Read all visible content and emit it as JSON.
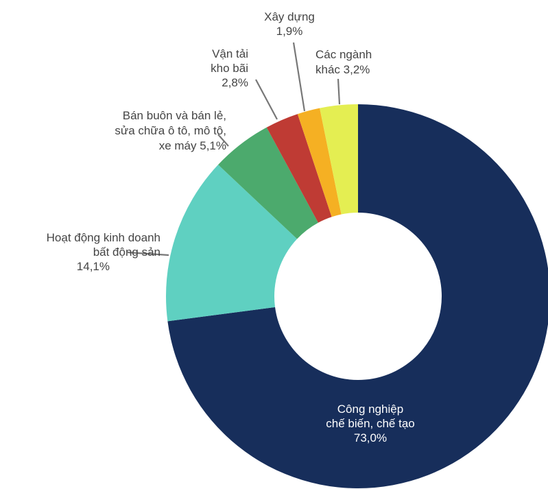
{
  "chart_data": {
    "type": "pie",
    "variant": "donut",
    "title": "",
    "unit": "%",
    "slices": [
      {
        "label_lines": [
          "Công nghiệp",
          "chế biến, chế tạo"
        ],
        "display_value": "73,0%",
        "value": 73.0,
        "color": "#172e5b"
      },
      {
        "label_lines": [
          "Hoạt động kinh doanh",
          "bất động sản"
        ],
        "display_value": "14,1%",
        "value": 14.1,
        "color": "#5fd0c1"
      },
      {
        "label_lines": [
          "Bán buôn và bán lẻ,",
          "sửa chữa ô tô, mô tô,",
          "xe máy"
        ],
        "display_value": "5,1%",
        "value": 5.1,
        "color": "#4caa6d"
      },
      {
        "label_lines": [
          "Vận tải",
          "kho bãi"
        ],
        "display_value": "2,8%",
        "value": 2.8,
        "color": "#bf3b34"
      },
      {
        "label_lines": [
          "Xây dựng"
        ],
        "display_value": "1,9%",
        "value": 1.9,
        "color": "#f5b023"
      },
      {
        "label_lines": [
          "Các ngành",
          "khác"
        ],
        "display_value": "3,2%",
        "value": 3.2,
        "color": "#e4ee52"
      }
    ]
  }
}
